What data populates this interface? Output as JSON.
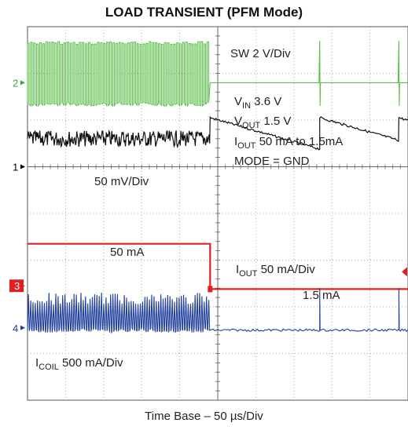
{
  "chart_data": {
    "type": "line",
    "title": "LOAD TRANSIENT (PFM Mode)",
    "xlabel": "Time Base – 50 µs/Div",
    "ylabel": "",
    "grid": true,
    "divisions": {
      "x": 10,
      "y": 8
    },
    "xlim": [
      0,
      500
    ],
    "x_unit": "µs",
    "load_step_time_us": 240,
    "channel_markers": [
      {
        "label": "1",
        "color": "#000000",
        "baseline_div": 3.0
      },
      {
        "label": "2",
        "color": "#3aa63a",
        "baseline_div": 1.2
      },
      {
        "label": "3",
        "color": "#e02020",
        "baseline_div": 5.55
      },
      {
        "label": "4",
        "color": "#1f3f9a",
        "baseline_div": 6.45
      }
    ],
    "series": [
      {
        "channel": "2",
        "color": "#5cbf4a",
        "scale": "SW 2 V/Div",
        "before": {
          "low_div": 0.3,
          "high_div": 1.7
        },
        "after": {
          "level_div": 1.2,
          "spike_times_us": [
            384,
            488
          ]
        }
      },
      {
        "channel": "1",
        "color": "#111111",
        "scale": "50 mV/Div",
        "before": {
          "mean_div": 2.4,
          "ripple_div": 0.35
        },
        "after": {
          "start_div": 1.95,
          "decay_div": 0.7,
          "reset_times_us": [
            384,
            488
          ]
        }
      },
      {
        "channel": "3",
        "color": "#e02020",
        "scale": "I_OUT 50 mA/Div",
        "points": [
          {
            "x": 0,
            "y": 50
          },
          {
            "x": 240,
            "y": 50
          },
          {
            "x": 240,
            "y": 1.5
          },
          {
            "x": 500,
            "y": 1.5
          }
        ],
        "y_unit": "mA"
      },
      {
        "channel": "4",
        "color": "#1f3f9a",
        "scale": "I_COIL 500 mA/Div",
        "before": {
          "base_div": 6.45,
          "peak_div": 5.7
        },
        "after": {
          "level_div": 6.5,
          "spike_times_us": [
            384,
            488
          ]
        }
      }
    ],
    "annotations": [
      {
        "text": "SW 2 V/Div"
      },
      {
        "parts": [
          "V",
          "IN",
          " 3.6 V"
        ]
      },
      {
        "parts": [
          "V",
          "OUT",
          " 1.5 V"
        ]
      },
      {
        "parts": [
          "I",
          "OUT",
          " 50 mA to 1.5mA"
        ]
      },
      {
        "text": "MODE = GND"
      },
      {
        "text": "50 mV/Div"
      },
      {
        "text": "50 mA"
      },
      {
        "parts": [
          "I",
          "OUT",
          " 50 mA/Div"
        ]
      },
      {
        "text": "1.5 mA"
      },
      {
        "parts": [
          "I",
          "COIL",
          " 500 mA/Div"
        ]
      }
    ]
  }
}
